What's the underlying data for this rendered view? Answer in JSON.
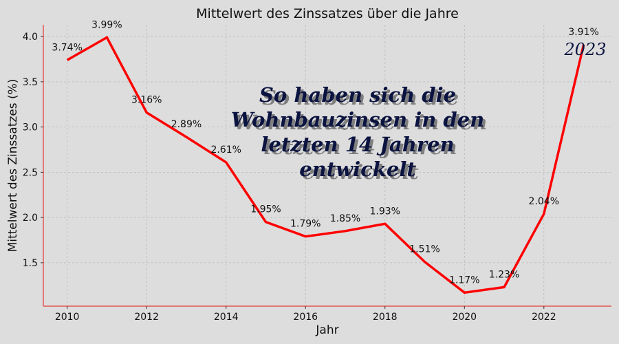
{
  "chart_data": {
    "type": "line",
    "title": "Mittelwert des Zinssatzes über die Jahre",
    "xlabel": "Jahr",
    "ylabel": "Mittelwert des Zinssatzes (%)",
    "xlim": [
      2009.4,
      2023.7
    ],
    "ylim": [
      1.02,
      4.13
    ],
    "grid": true,
    "x_ticks": [
      2010,
      2012,
      2014,
      2016,
      2018,
      2020,
      2022
    ],
    "x_tick_labels": [
      "2010",
      "2012",
      "2014",
      "2016",
      "2018",
      "2020",
      "2022"
    ],
    "y_ticks": [
      1.5,
      2.0,
      2.5,
      3.0,
      3.5,
      4.0
    ],
    "y_tick_labels": [
      "1.5",
      "2.0",
      "2.5",
      "3.0",
      "3.5",
      "4.0"
    ],
    "series": [
      {
        "x": [
          2010,
          2011,
          2012,
          2013,
          2014,
          2015,
          2016,
          2017,
          2018,
          2019,
          2020,
          2021,
          2022,
          2023
        ],
        "values": [
          3.74,
          3.99,
          3.16,
          2.89,
          2.61,
          1.95,
          1.79,
          1.85,
          1.93,
          1.51,
          1.17,
          1.23,
          2.04,
          3.91
        ],
        "labels": [
          "3.74%",
          "3.99%",
          "3.16%",
          "2.89%",
          "2.61%",
          "1.95%",
          "1.79%",
          "1.85%",
          "1.93%",
          "1.51%",
          "1.17%",
          "1.23%",
          "2.04%",
          "3.91%"
        ],
        "color": "#ff0000"
      }
    ],
    "annotations": {
      "overlay_text_lines": [
        "So haben sich die",
        "Wohnbauzinsen in den",
        "letzten 14 Jahren",
        "entwickelt"
      ],
      "year_badge": "2023",
      "overlay_color": "#0b1340",
      "shadow_color": "#7f7f7f"
    },
    "spine_color": "#e53935",
    "background": "#dddddd"
  }
}
